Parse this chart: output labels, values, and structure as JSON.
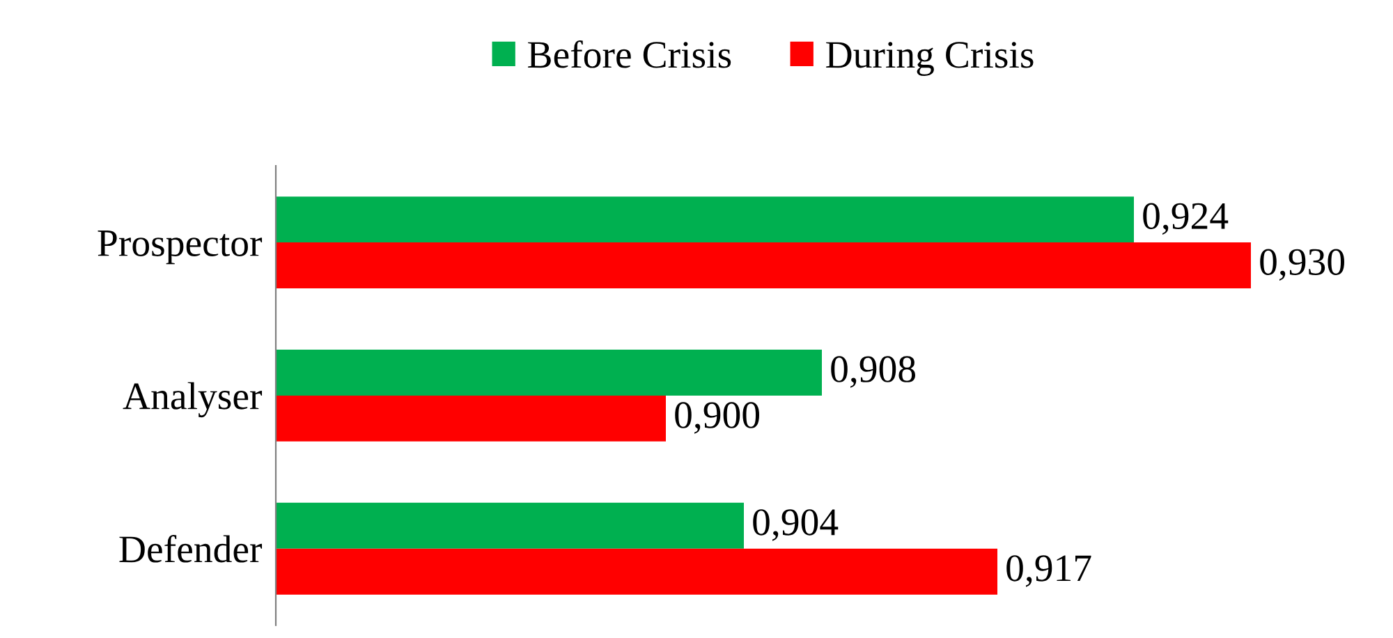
{
  "chart_data": {
    "type": "bar",
    "orientation": "horizontal",
    "categories": [
      "Prospector",
      "Analyser",
      "Defender"
    ],
    "series": [
      {
        "name": "Before Crisis",
        "color": "#00b050",
        "values": [
          0.924,
          0.908,
          0.904
        ],
        "value_labels": [
          "0,924",
          "0,908",
          "0,904"
        ]
      },
      {
        "name": "During Crisis",
        "color": "#ff0000",
        "values": [
          0.93,
          0.9,
          0.917
        ],
        "value_labels": [
          "0,930",
          "0,900",
          "0,917"
        ]
      }
    ],
    "xlim": [
      0.88,
      0.93
    ],
    "tick_labels": "y",
    "grid": false,
    "legend": "top"
  }
}
